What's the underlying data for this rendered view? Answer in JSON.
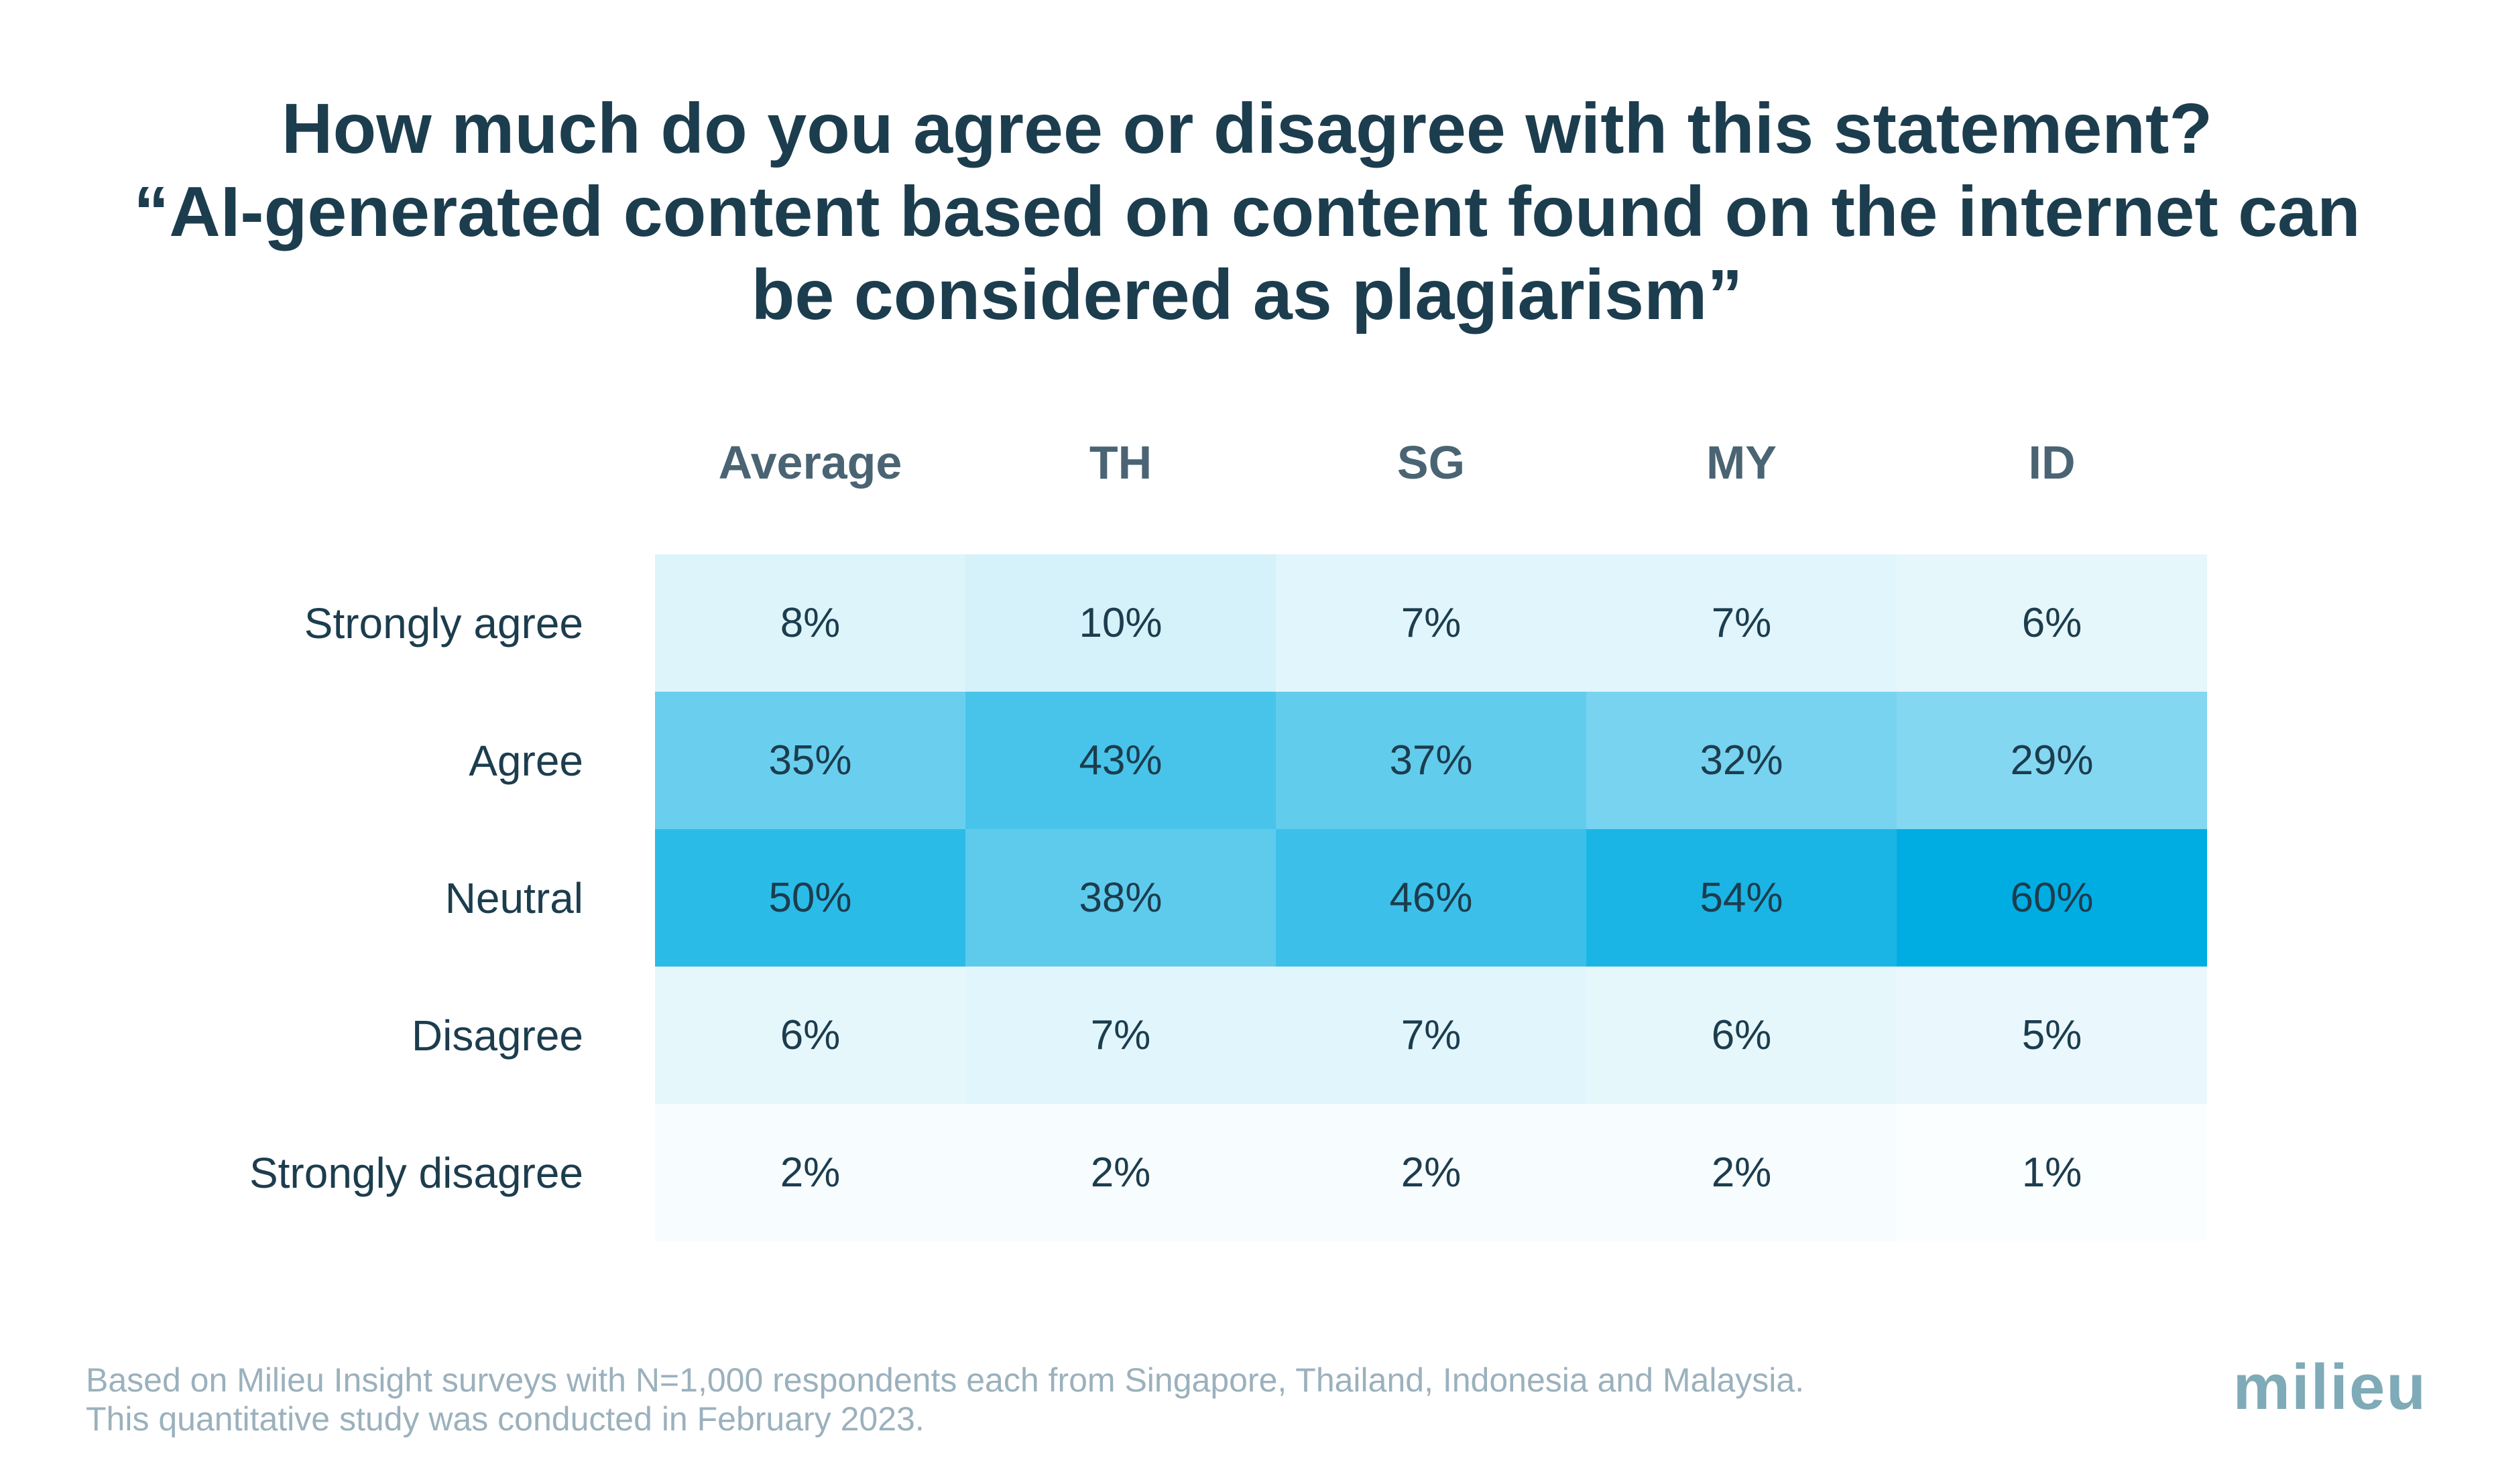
{
  "title_lines": [
    "How much do you agree or disagree with this statement?",
    "“AI-generated content based on content found on the internet can",
    "be considered as plagiarism”"
  ],
  "chart_data": {
    "type": "heatmap",
    "title": "How much do you agree or disagree with this statement? “AI-generated content based on content found on the internet can be considered as plagiarism”",
    "columns": [
      "Average",
      "TH",
      "SG",
      "MY",
      "ID"
    ],
    "rows": [
      "Strongly agree",
      "Agree",
      "Neutral",
      "Disagree",
      "Strongly disagree"
    ],
    "values": [
      [
        8,
        10,
        7,
        7,
        6
      ],
      [
        35,
        43,
        37,
        32,
        29
      ],
      [
        50,
        38,
        46,
        54,
        60
      ],
      [
        6,
        7,
        7,
        6,
        5
      ],
      [
        2,
        2,
        2,
        2,
        1
      ]
    ],
    "value_suffix": "%",
    "color_low": "#ffffff",
    "color_high": "#00ade2"
  },
  "footnote": {
    "line1": "Based on Milieu Insight surveys with N=1,000 respondents each from Singapore, Thailand, Indonesia and Malaysia.",
    "line2": "This quantitative study was conducted in February 2023."
  },
  "logo": "milieu",
  "colors": {
    "title": "#1c3d4e",
    "header": "#4a6473",
    "footnote": "#9bb1bd",
    "logo": "#7faab8"
  }
}
